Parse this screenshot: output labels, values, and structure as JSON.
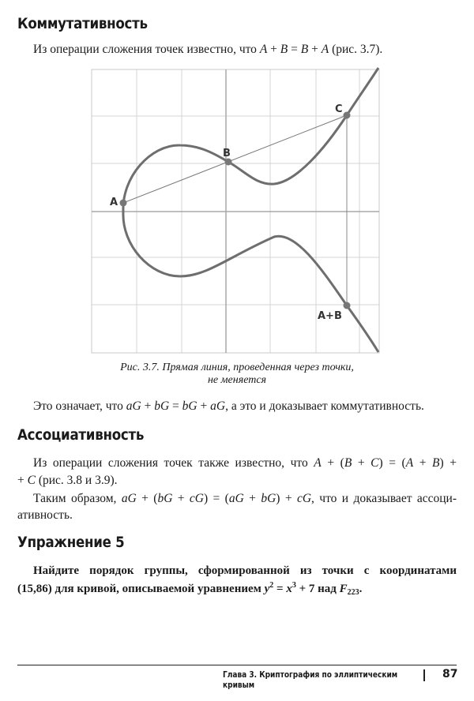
{
  "sections": {
    "commutativity": {
      "heading": "Коммутативность",
      "line1": [
        {
          "t": "Из операции сложения точек известно, что "
        },
        {
          "t": "A",
          "i": 1
        },
        {
          "t": " + "
        },
        {
          "t": "B",
          "i": 1
        },
        {
          "t": " = "
        },
        {
          "t": "B",
          "i": 1
        },
        {
          "t": " + "
        },
        {
          "t": "A",
          "i": 1
        },
        {
          "t": " (рис. 3.7)."
        }
      ],
      "line2": [
        {
          "t": "Это означает, что "
        },
        {
          "t": "aG",
          "i": 1
        },
        {
          "t": " + "
        },
        {
          "t": "bG",
          "i": 1
        },
        {
          "t": " = "
        },
        {
          "t": "bG",
          "i": 1
        },
        {
          "t": " + "
        },
        {
          "t": "aG",
          "i": 1
        },
        {
          "t": ", а это и доказывает коммутативность."
        }
      ]
    },
    "figure": {
      "points": {
        "A": "A",
        "B": "B",
        "C": "C",
        "AB": "A+B"
      },
      "caption_line1": "Рис. 3.7. Прямая линия, проведенная через точки,",
      "caption_line2": "не меняется",
      "curve_color": "#6e6e6e",
      "grid_color": "#d4d4d4"
    },
    "associativity": {
      "heading": "Ассоциативность",
      "line1": [
        {
          "t": "Из операции сложения точек также известно, что "
        },
        {
          "t": "A",
          "i": 1
        },
        {
          "t": " + ("
        },
        {
          "t": "B",
          "i": 1
        },
        {
          "t": " + "
        },
        {
          "t": "C",
          "i": 1
        },
        {
          "t": ") = ("
        },
        {
          "t": "A",
          "i": 1
        },
        {
          "t": " + "
        },
        {
          "t": "B",
          "i": 1
        },
        {
          "t": ") +"
        }
      ],
      "line2": [
        {
          "t": "+ "
        },
        {
          "t": "C",
          "i": 1
        },
        {
          "t": " (рис. 3.8 и 3.9)."
        }
      ],
      "line3": [
        {
          "t": "Таким образом, "
        },
        {
          "t": "aG",
          "i": 1
        },
        {
          "t": " + ("
        },
        {
          "t": "bG",
          "i": 1
        },
        {
          "t": " + "
        },
        {
          "t": "cG",
          "i": 1
        },
        {
          "t": ") = ("
        },
        {
          "t": "aG",
          "i": 1
        },
        {
          "t": " + "
        },
        {
          "t": "bG",
          "i": 1
        },
        {
          "t": ") + "
        },
        {
          "t": "cG",
          "i": 1
        },
        {
          "t": ", что и доказывает ассоци-"
        }
      ],
      "line4": [
        {
          "t": "ативность."
        }
      ]
    },
    "exercise": {
      "heading": "Упражнение 5",
      "line1": [
        {
          "t": "Найдите порядок группы, сформированной из точки с координатами"
        }
      ],
      "line2": [
        {
          "t": "(15,86) для кривой, описываемой уравнением "
        },
        {
          "t": "y",
          "i": 1
        },
        {
          "t": "2",
          "sup": 1
        },
        {
          "t": " = "
        },
        {
          "t": "x",
          "i": 1
        },
        {
          "t": "3",
          "sup": 1
        },
        {
          "t": " + 7 над "
        },
        {
          "t": "F",
          "i": 1
        },
        {
          "t": "223",
          "sub": 1
        },
        {
          "t": "."
        }
      ]
    }
  },
  "footer": {
    "chapter": "Глава 3. Криптография по эллиптическим кривым",
    "page": "87"
  }
}
